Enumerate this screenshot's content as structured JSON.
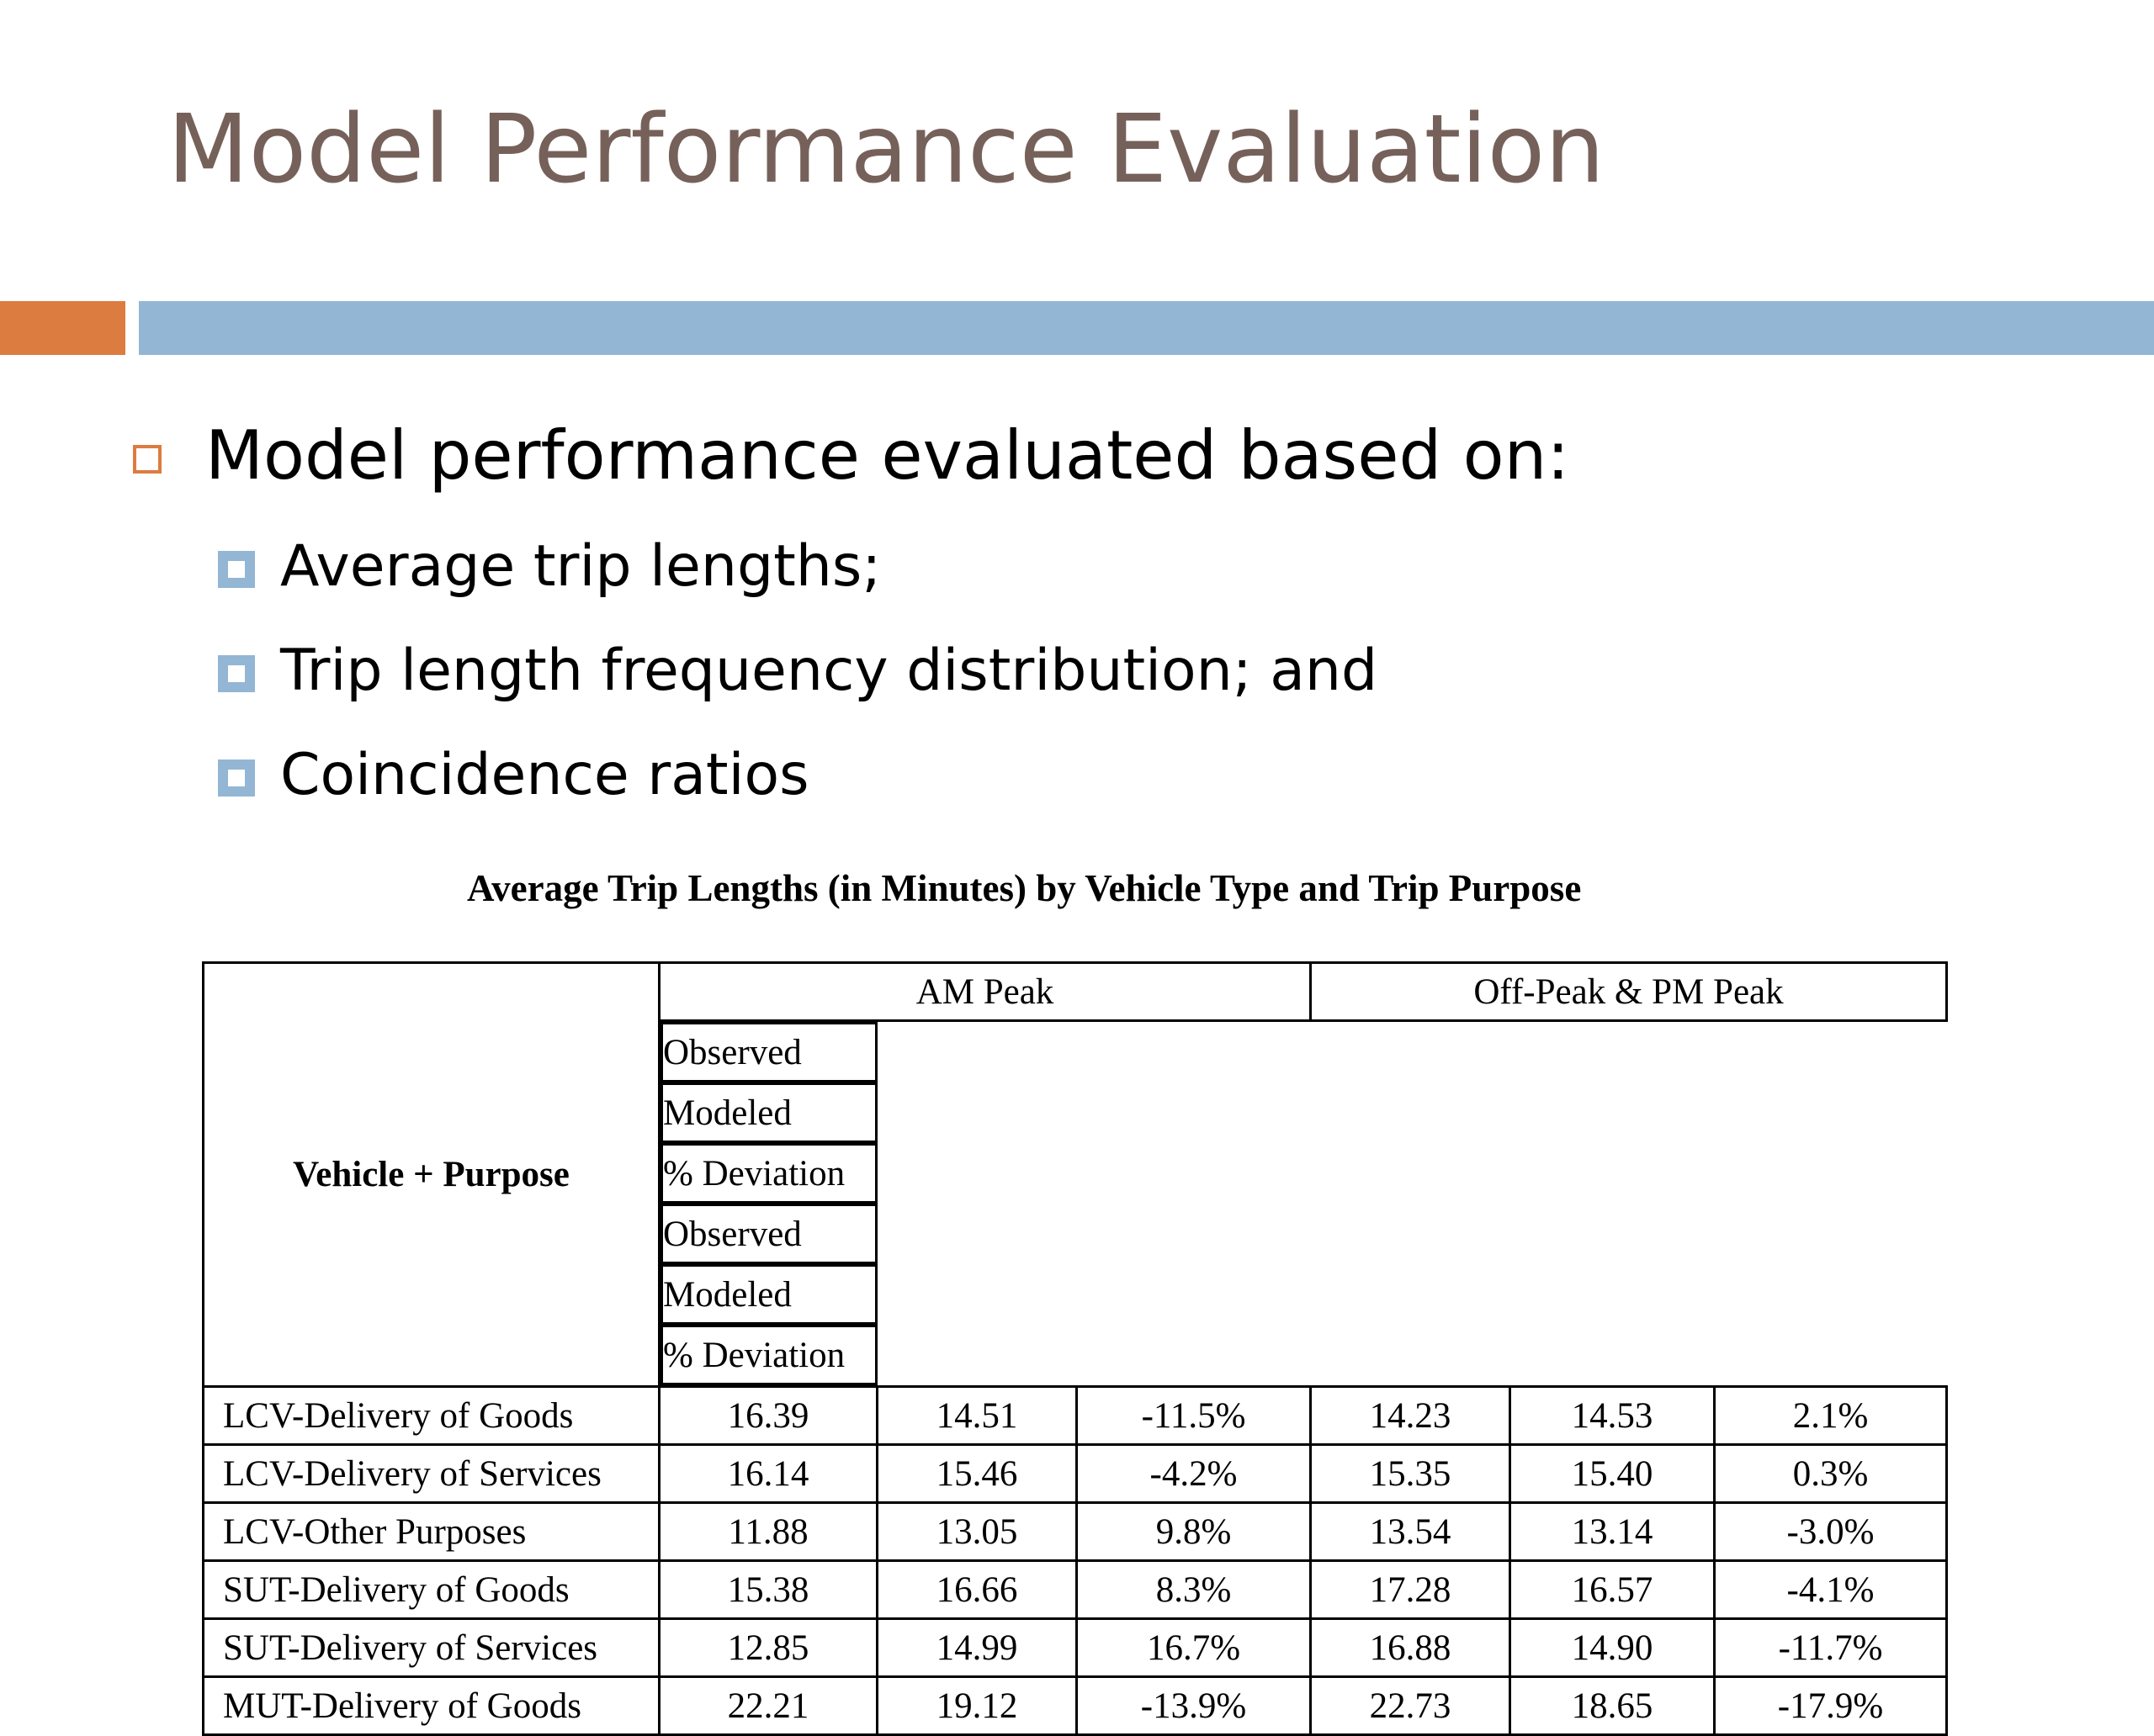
{
  "slide": {
    "title": "Model Performance Evaluation",
    "colors": {
      "title": "#76615a",
      "accent_orange": "#dc7c40",
      "accent_blue": "#93b6d4"
    },
    "bullet": "Model performance evaluated based on:",
    "sub_bullets": [
      "Average trip lengths;",
      "Trip length frequency distribution; and",
      "Coincidence ratios"
    ]
  },
  "table": {
    "caption": "Average Trip Lengths (in Minutes) by Vehicle Type and Trip Purpose",
    "corner_header": "Vehicle + Purpose",
    "groups": [
      "AM Peak",
      "Off-Peak & PM Peak"
    ],
    "subheaders": [
      "Observed",
      "Modeled",
      "% Deviation",
      "Observed",
      "Modeled",
      "% Deviation"
    ],
    "rows": [
      {
        "label": "LCV-Delivery of Goods",
        "values": [
          "16.39",
          "14.51",
          "-11.5%",
          "14.23",
          "14.53",
          "2.1%"
        ]
      },
      {
        "label": "LCV-Delivery of Services",
        "values": [
          "16.14",
          "15.46",
          "-4.2%",
          "15.35",
          "15.40",
          "0.3%"
        ]
      },
      {
        "label": "LCV-Other Purposes",
        "values": [
          "11.88",
          "13.05",
          "9.8%",
          "13.54",
          "13.14",
          "-3.0%"
        ]
      },
      {
        "label": "SUT-Delivery of Goods",
        "values": [
          "15.38",
          "16.66",
          "8.3%",
          "17.28",
          "16.57",
          "-4.1%"
        ]
      },
      {
        "label": "SUT-Delivery of Services",
        "values": [
          "12.85",
          "14.99",
          "16.7%",
          "16.88",
          "14.90",
          "-11.7%"
        ]
      },
      {
        "label": "MUT-Delivery of Goods",
        "values": [
          "22.21",
          "19.12",
          "-13.9%",
          "22.73",
          "18.65",
          "-17.9%"
        ]
      }
    ]
  }
}
